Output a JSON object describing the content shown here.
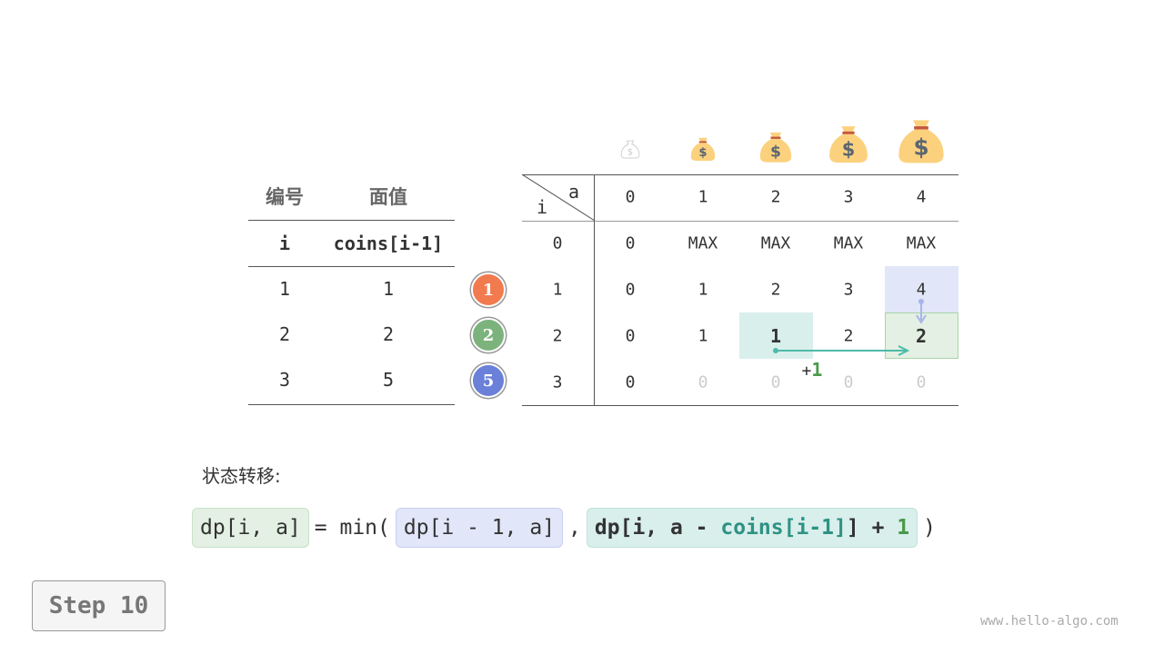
{
  "coin_table": {
    "headers": [
      "编号",
      "面值"
    ],
    "subheaders": [
      "i",
      "coins[i-1]"
    ],
    "rows": [
      [
        "1",
        "1"
      ],
      [
        "2",
        "2"
      ],
      [
        "3",
        "5"
      ]
    ]
  },
  "coin_badges": [
    {
      "label": "1",
      "color": "#f27a4f"
    },
    {
      "label": "2",
      "color": "#7cb37c"
    },
    {
      "label": "5",
      "color": "#6a80d9"
    }
  ],
  "dp_table": {
    "corner_col_label": "a",
    "corner_row_label": "i",
    "col_headers": [
      "0",
      "1",
      "2",
      "3",
      "4"
    ],
    "row_headers": [
      "0",
      "1",
      "2",
      "3"
    ],
    "rows": [
      [
        "0",
        "MAX",
        "MAX",
        "MAX",
        "MAX"
      ],
      [
        "0",
        "1",
        "2",
        "3",
        "4"
      ],
      [
        "0",
        "1",
        "1",
        "2",
        "2"
      ],
      [
        "0",
        "0",
        "0",
        "0",
        "0"
      ]
    ],
    "plus_label": "+",
    "plus_value": "1",
    "highlight_colors": {
      "up": "#e1e6f8",
      "left": "#d9efec",
      "current": "#e3f0e3"
    }
  },
  "formula": {
    "label": "状态转移:",
    "lhs": "dp[i, a]",
    "eq": "= min(",
    "term1": "dp[i - 1, a]",
    "comma": ",",
    "term2_a": "dp[i, a - ",
    "term2_b": "coins[i-1]",
    "term2_c": "] + ",
    "term2_d": "1",
    "close": ")"
  },
  "step_label": "Step 10",
  "watermark": "www.hello-algo.com"
}
